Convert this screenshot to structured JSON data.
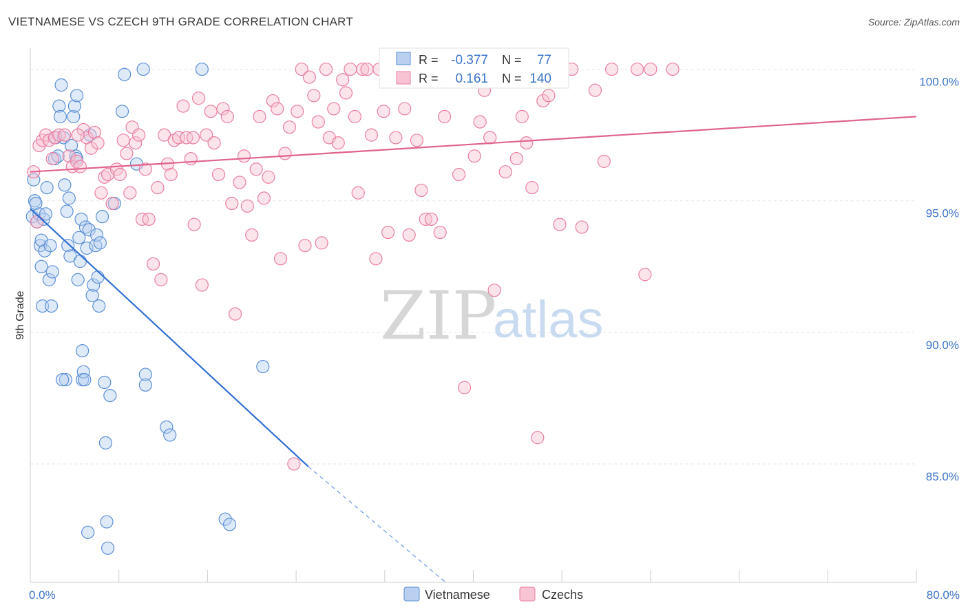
{
  "title": "VIETNAMESE VS CZECH 9TH GRADE CORRELATION CHART",
  "source": "Source: ZipAtlas.com",
  "watermark": {
    "zip": "ZIP",
    "atlas": "atlas"
  },
  "colors": {
    "vietnamese": "#5b8fd6",
    "czechs": "#e97ea3",
    "accent": "#3a73c9"
  },
  "stats": [
    {
      "r_label": "R =",
      "r": "-0.377",
      "n_label": "N =",
      "n": "77"
    },
    {
      "r_label": "R =",
      "r": "0.161",
      "n_label": "N =",
      "n": "140"
    }
  ],
  "chart_data": {
    "type": "scatter",
    "title": "VIETNAMESE VS CZECH 9TH GRADE CORRELATION CHART",
    "xlabel": "",
    "ylabel": "9th Grade",
    "xlim": [
      0,
      80
    ],
    "ylim": [
      80.5,
      100.8
    ],
    "x_tick_labels": [
      "0.0%",
      "80.0%"
    ],
    "y_ticks": [
      85,
      90,
      95,
      100
    ],
    "y_tick_labels": [
      "85.0%",
      "90.0%",
      "95.0%",
      "100.0%"
    ],
    "grid": true,
    "legend_position": "bottom-center",
    "series": [
      {
        "name": "Vietnamese",
        "r": -0.377,
        "n": 77,
        "trend": {
          "x0": 0.0,
          "y0": 94.7,
          "x1": 25.1,
          "y1": 84.9,
          "dash_x_end": 37.5,
          "dash_y_end": 80.5
        },
        "points": [
          [
            0.2,
            94.4
          ],
          [
            0.3,
            95.8
          ],
          [
            0.4,
            95.0
          ],
          [
            0.5,
            94.9
          ],
          [
            0.6,
            94.2
          ],
          [
            0.8,
            94.5
          ],
          [
            0.9,
            93.3
          ],
          [
            1.0,
            92.5
          ],
          [
            1.0,
            93.5
          ],
          [
            1.1,
            91.0
          ],
          [
            1.2,
            94.3
          ],
          [
            1.3,
            93.1
          ],
          [
            1.4,
            94.5
          ],
          [
            1.5,
            95.5
          ],
          [
            1.7,
            92.0
          ],
          [
            1.8,
            93.3
          ],
          [
            1.9,
            91.0
          ],
          [
            2.0,
            92.3
          ],
          [
            2.2,
            96.6
          ],
          [
            2.3,
            97.4
          ],
          [
            2.5,
            96.7
          ],
          [
            2.6,
            98.6
          ],
          [
            2.7,
            98.2
          ],
          [
            2.8,
            99.4
          ],
          [
            3.0,
            97.4
          ],
          [
            3.1,
            95.6
          ],
          [
            3.2,
            88.2
          ],
          [
            3.3,
            94.6
          ],
          [
            3.4,
            93.3
          ],
          [
            3.5,
            95.1
          ],
          [
            3.6,
            92.9
          ],
          [
            3.7,
            97.1
          ],
          [
            3.9,
            98.2
          ],
          [
            4.0,
            98.6
          ],
          [
            4.1,
            96.7
          ],
          [
            4.2,
            99.0
          ],
          [
            4.3,
            92.0
          ],
          [
            4.4,
            93.6
          ],
          [
            4.5,
            92.7
          ],
          [
            4.6,
            94.3
          ],
          [
            4.7,
            89.3
          ],
          [
            4.7,
            88.2
          ],
          [
            4.8,
            88.5
          ],
          [
            4.9,
            88.2
          ],
          [
            5.0,
            94.0
          ],
          [
            5.1,
            93.2
          ],
          [
            5.2,
            82.4
          ],
          [
            5.3,
            93.9
          ],
          [
            5.4,
            97.5
          ],
          [
            5.6,
            91.4
          ],
          [
            5.7,
            91.8
          ],
          [
            5.9,
            93.3
          ],
          [
            6.0,
            93.7
          ],
          [
            6.1,
            92.1
          ],
          [
            6.2,
            91.0
          ],
          [
            6.3,
            93.4
          ],
          [
            6.5,
            94.4
          ],
          [
            6.7,
            88.1
          ],
          [
            6.8,
            85.8
          ],
          [
            6.9,
            82.8
          ],
          [
            7.0,
            81.8
          ],
          [
            7.2,
            87.6
          ],
          [
            7.6,
            94.9
          ],
          [
            8.3,
            98.4
          ],
          [
            8.5,
            99.8
          ],
          [
            9.6,
            96.4
          ],
          [
            10.2,
            100.0
          ],
          [
            10.4,
            88.4
          ],
          [
            10.4,
            88.0
          ],
          [
            12.3,
            86.4
          ],
          [
            12.6,
            86.1
          ],
          [
            15.5,
            100.0
          ],
          [
            17.6,
            82.9
          ],
          [
            18.0,
            82.7
          ],
          [
            21.0,
            88.7
          ],
          [
            4.2,
            96.6
          ],
          [
            2.9,
            88.2
          ]
        ]
      },
      {
        "name": "Czechs",
        "r": 0.161,
        "n": 140,
        "trend": {
          "x0": 0.0,
          "y0": 96.1,
          "x1": 80.0,
          "y1": 98.2
        },
        "points": [
          [
            0.3,
            96.1
          ],
          [
            0.6,
            94.2
          ],
          [
            0.8,
            97.1
          ],
          [
            1.1,
            97.3
          ],
          [
            1.4,
            97.5
          ],
          [
            1.7,
            97.3
          ],
          [
            2.0,
            96.6
          ],
          [
            2.2,
            97.4
          ],
          [
            2.6,
            97.5
          ],
          [
            3.1,
            97.5
          ],
          [
            3.5,
            96.7
          ],
          [
            3.8,
            96.3
          ],
          [
            4.2,
            96.5
          ],
          [
            4.5,
            96.3
          ],
          [
            4.8,
            97.7
          ],
          [
            5.1,
            97.4
          ],
          [
            5.5,
            97.0
          ],
          [
            5.8,
            97.6
          ],
          [
            6.1,
            97.2
          ],
          [
            6.4,
            95.3
          ],
          [
            6.7,
            95.9
          ],
          [
            7.0,
            96.0
          ],
          [
            7.4,
            94.9
          ],
          [
            7.8,
            96.2
          ],
          [
            8.1,
            96.0
          ],
          [
            8.4,
            97.3
          ],
          [
            8.7,
            96.8
          ],
          [
            9.0,
            95.3
          ],
          [
            9.2,
            97.8
          ],
          [
            9.5,
            97.2
          ],
          [
            9.8,
            97.5
          ],
          [
            10.1,
            94.3
          ],
          [
            10.4,
            96.2
          ],
          [
            10.7,
            94.3
          ],
          [
            11.1,
            92.6
          ],
          [
            11.5,
            95.5
          ],
          [
            11.8,
            92.0
          ],
          [
            12.1,
            97.5
          ],
          [
            12.4,
            96.4
          ],
          [
            12.7,
            96.0
          ],
          [
            13.0,
            97.3
          ],
          [
            13.4,
            97.4
          ],
          [
            13.8,
            98.6
          ],
          [
            14.1,
            97.4
          ],
          [
            14.5,
            96.6
          ],
          [
            14.8,
            94.1
          ],
          [
            15.2,
            98.9
          ],
          [
            15.5,
            91.8
          ],
          [
            15.9,
            97.5
          ],
          [
            16.3,
            98.4
          ],
          [
            16.6,
            97.2
          ],
          [
            17.0,
            96.0
          ],
          [
            17.4,
            98.5
          ],
          [
            17.8,
            98.2
          ],
          [
            18.2,
            94.9
          ],
          [
            18.5,
            90.7
          ],
          [
            18.9,
            95.7
          ],
          [
            19.3,
            96.7
          ],
          [
            19.6,
            94.8
          ],
          [
            20.0,
            93.7
          ],
          [
            20.4,
            96.2
          ],
          [
            20.7,
            98.2
          ],
          [
            21.1,
            95.1
          ],
          [
            21.5,
            95.9
          ],
          [
            21.9,
            98.8
          ],
          [
            22.3,
            98.5
          ],
          [
            22.6,
            92.8
          ],
          [
            23.0,
            96.8
          ],
          [
            23.4,
            97.8
          ],
          [
            23.8,
            85.0
          ],
          [
            24.1,
            98.4
          ],
          [
            24.5,
            100.0
          ],
          [
            24.8,
            93.3
          ],
          [
            25.2,
            99.7
          ],
          [
            25.6,
            99.0
          ],
          [
            26.0,
            98.0
          ],
          [
            26.3,
            93.4
          ],
          [
            26.7,
            100.0
          ],
          [
            27.0,
            97.4
          ],
          [
            27.4,
            98.5
          ],
          [
            27.8,
            97.2
          ],
          [
            28.2,
            99.6
          ],
          [
            28.5,
            99.1
          ],
          [
            28.9,
            100.0
          ],
          [
            29.3,
            98.2
          ],
          [
            29.6,
            95.3
          ],
          [
            30.0,
            100.0
          ],
          [
            30.4,
            100.0
          ],
          [
            30.8,
            97.5
          ],
          [
            31.2,
            92.8
          ],
          [
            31.5,
            100.0
          ],
          [
            31.9,
            98.4
          ],
          [
            32.3,
            93.8
          ],
          [
            32.6,
            99.7
          ],
          [
            33.0,
            97.4
          ],
          [
            33.4,
            100.0
          ],
          [
            33.8,
            98.5
          ],
          [
            34.2,
            93.7
          ],
          [
            34.5,
            100.0
          ],
          [
            34.9,
            97.3
          ],
          [
            35.3,
            95.4
          ],
          [
            35.7,
            94.3
          ],
          [
            36.2,
            94.3
          ],
          [
            36.6,
            100.0
          ],
          [
            37.0,
            93.8
          ],
          [
            37.4,
            98.2
          ],
          [
            37.8,
            100.0
          ],
          [
            38.3,
            100.0
          ],
          [
            38.7,
            96.0
          ],
          [
            39.2,
            87.9
          ],
          [
            39.6,
            100.0
          ],
          [
            40.1,
            96.7
          ],
          [
            40.6,
            98.0
          ],
          [
            41.0,
            99.2
          ],
          [
            41.5,
            97.4
          ],
          [
            41.9,
            91.6
          ],
          [
            42.4,
            100.0
          ],
          [
            42.9,
            96.1
          ],
          [
            43.4,
            100.0
          ],
          [
            43.9,
            96.6
          ],
          [
            44.4,
            98.2
          ],
          [
            44.8,
            97.2
          ],
          [
            45.3,
            95.5
          ],
          [
            45.8,
            86.0
          ],
          [
            46.3,
            98.8
          ],
          [
            46.8,
            99.0
          ],
          [
            47.3,
            100.0
          ],
          [
            47.8,
            94.1
          ],
          [
            48.9,
            100.0
          ],
          [
            49.8,
            94.0
          ],
          [
            51.0,
            99.2
          ],
          [
            51.8,
            96.5
          ],
          [
            52.5,
            100.0
          ],
          [
            54.8,
            100.0
          ],
          [
            55.5,
            92.2
          ],
          [
            56.0,
            100.0
          ],
          [
            58.0,
            100.0
          ],
          [
            4.3,
            97.5
          ],
          [
            14.7,
            97.4
          ]
        ]
      }
    ]
  }
}
